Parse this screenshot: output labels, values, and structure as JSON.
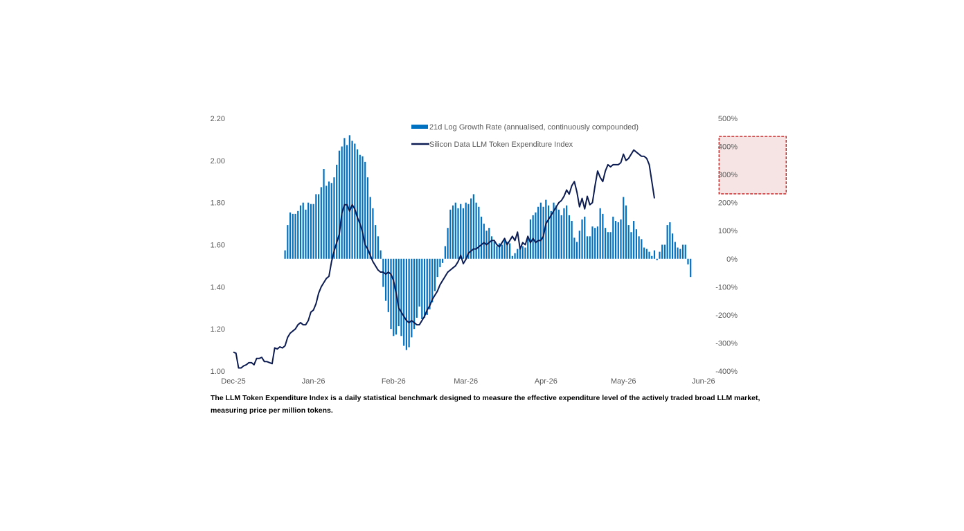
{
  "chart_data": {
    "type": "bar+line",
    "title": "",
    "xlabel": "",
    "ylabel": "",
    "x_ticks": [
      "Dec-25",
      "Jan-26",
      "Feb-26",
      "Mar-26",
      "Apr-26",
      "May-26",
      "Jun-26"
    ],
    "y_left": {
      "ticks": [
        "1.00",
        "1.20",
        "1.40",
        "1.60",
        "1.80",
        "2.00",
        "2.20"
      ],
      "range": [
        1.0,
        2.2
      ]
    },
    "y_right": {
      "ticks": [
        "-400%",
        "-300%",
        "-200%",
        "-100%",
        "0%",
        "100%",
        "200%",
        "300%",
        "400%",
        "500%"
      ],
      "range": [
        -400,
        500
      ]
    },
    "grid": false,
    "legend_position": "top-center",
    "colors": {
      "bars": "#0070c0",
      "line": "#0c1c52",
      "highlight_border": "#c00000",
      "highlight_fill": "#f4dcdc"
    },
    "series": [
      {
        "name": "21d Log Growth Rate (annualised, continuously compounded)",
        "kind": "bar",
        "axis": "right",
        "unit": "%",
        "start_day": 20,
        "values": [
          30,
          120,
          165,
          160,
          160,
          170,
          190,
          200,
          175,
          200,
          195,
          195,
          230,
          230,
          255,
          320,
          260,
          275,
          270,
          290,
          335,
          385,
          400,
          430,
          405,
          440,
          420,
          410,
          390,
          370,
          365,
          345,
          290,
          220,
          180,
          120,
          80,
          30,
          -100,
          -150,
          -190,
          -250,
          -275,
          -270,
          -240,
          -275,
          -310,
          -325,
          -315,
          -280,
          -250,
          -210,
          -170,
          -215,
          -210,
          -200,
          -180,
          -155,
          -115,
          -65,
          -30,
          -15,
          45,
          110,
          175,
          190,
          200,
          180,
          195,
          180,
          200,
          195,
          215,
          230,
          200,
          185,
          150,
          125,
          100,
          110,
          80,
          60,
          45,
          55,
          50,
          70,
          60,
          55,
          10,
          20,
          35,
          40,
          45,
          40,
          70,
          140,
          155,
          165,
          185,
          200,
          185,
          210,
          190,
          170,
          200,
          190,
          175,
          155,
          180,
          190,
          155,
          135,
          75,
          60,
          100,
          140,
          150,
          80,
          80,
          115,
          110,
          115,
          180,
          160,
          110,
          95,
          95,
          150,
          135,
          130,
          140,
          220,
          190,
          120,
          95,
          135,
          105,
          80,
          70,
          40,
          35,
          25,
          10,
          30,
          -5,
          25,
          50,
          50,
          120,
          130,
          90,
          60,
          40,
          35,
          50,
          50,
          -20,
          -65
        ]
      },
      {
        "name": "Silicon Data LLM Token Expenditure Index",
        "kind": "line",
        "axis": "left",
        "start_day": 0,
        "values": [
          1.09,
          1.085,
          1.015,
          1.015,
          1.025,
          1.03,
          1.04,
          1.04,
          1.03,
          1.06,
          1.06,
          1.065,
          1.045,
          1.045,
          1.04,
          1.035,
          1.11,
          1.105,
          1.115,
          1.11,
          1.12,
          1.16,
          1.18,
          1.19,
          1.2,
          1.22,
          1.23,
          1.22,
          1.22,
          1.24,
          1.28,
          1.29,
          1.32,
          1.37,
          1.4,
          1.42,
          1.44,
          1.45,
          1.52,
          1.57,
          1.61,
          1.65,
          1.75,
          1.79,
          1.79,
          1.76,
          1.79,
          1.77,
          1.73,
          1.7,
          1.66,
          1.6,
          1.58,
          1.55,
          1.52,
          1.5,
          1.48,
          1.47,
          1.47,
          1.46,
          1.47,
          1.46,
          1.43,
          1.37,
          1.3,
          1.28,
          1.26,
          1.24,
          1.23,
          1.24,
          1.23,
          1.22,
          1.22,
          1.24,
          1.26,
          1.29,
          1.31,
          1.34,
          1.36,
          1.38,
          1.41,
          1.43,
          1.45,
          1.47,
          1.48,
          1.49,
          1.5,
          1.52,
          1.55,
          1.51,
          1.53,
          1.56,
          1.57,
          1.58,
          1.58,
          1.59,
          1.6,
          1.61,
          1.6,
          1.61,
          1.62,
          1.62,
          1.6,
          1.59,
          1.61,
          1.63,
          1.6,
          1.62,
          1.64,
          1.62,
          1.66,
          1.58,
          1.61,
          1.6,
          1.64,
          1.61,
          1.63,
          1.61,
          1.62,
          1.62,
          1.64,
          1.7,
          1.72,
          1.74,
          1.76,
          1.78,
          1.8,
          1.81,
          1.83,
          1.86,
          1.84,
          1.88,
          1.9,
          1.85,
          1.78,
          1.82,
          1.77,
          1.83,
          1.79,
          1.8,
          1.88,
          1.95,
          1.92,
          1.9,
          1.95,
          1.98,
          1.97,
          1.98,
          1.98,
          1.98,
          1.99,
          2.03,
          2.0,
          2.01,
          2.03,
          2.05,
          2.04,
          2.03,
          2.02,
          2.02,
          2.01,
          1.98,
          1.9,
          1.82
        ]
      }
    ],
    "annotations": [
      {
        "kind": "highlight-box",
        "description_days": [
          188,
          214
        ]
      }
    ]
  },
  "caption": {
    "line1": "The LLM Token Expenditure Index is a daily statistical benchmark designed to measure the effective expenditure level of the actively traded broad LLM market,",
    "line2": "measuring price per million tokens."
  }
}
